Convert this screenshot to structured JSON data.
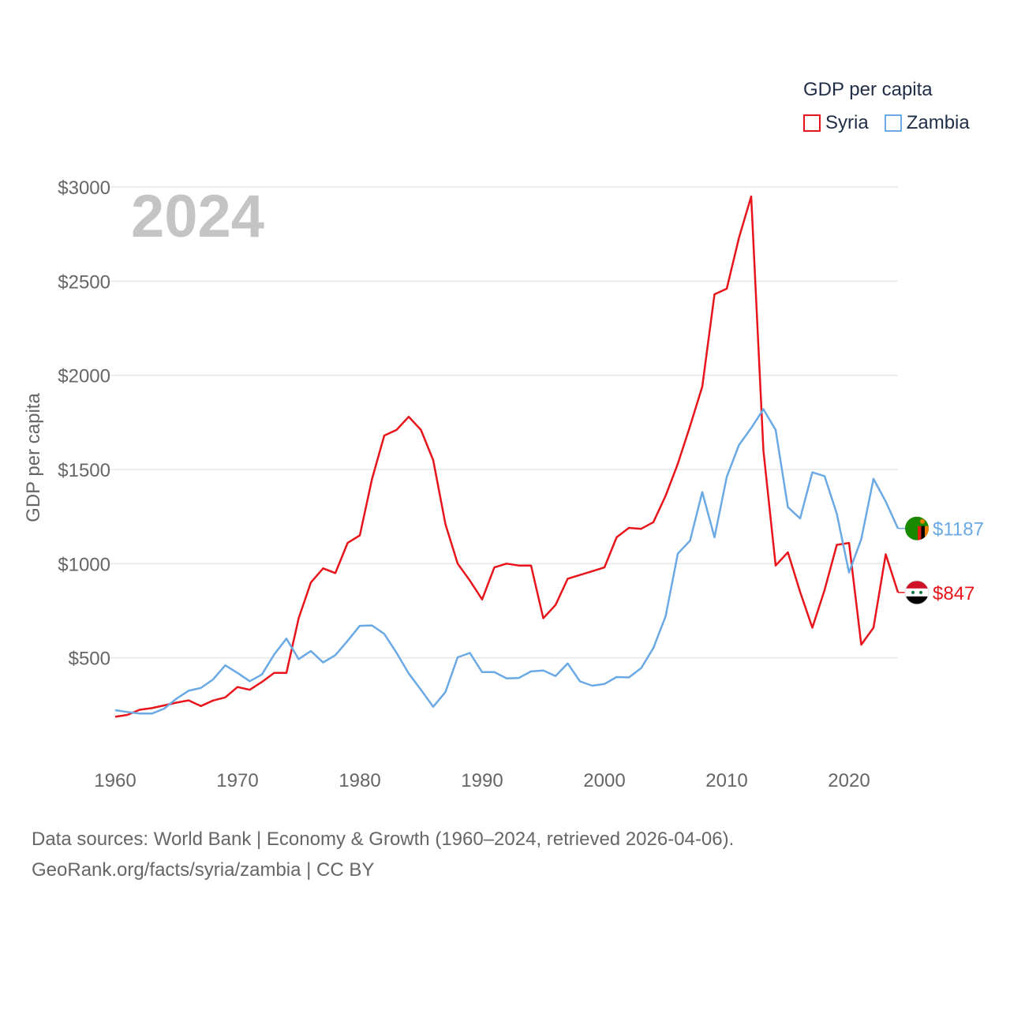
{
  "footer": {
    "sources": "Data sources: World Bank | Economy & Growth (1960–2024, retrieved 2026-04-06).",
    "link": "GeoRank.org/facts/syria/zambia | CC BY"
  },
  "colors": {
    "syria": "#e8141b",
    "zambia": "#6aa9e3",
    "grid": "#e6e6e6",
    "axis_text": "#666666",
    "year_label": "#c4c4c4",
    "title": "#1f2d46"
  },
  "chart_data": {
    "type": "line",
    "year_label": "2024",
    "ylabel": "GDP per capita",
    "legend_title": "GDP per capita",
    "legend_position": "top-right",
    "xlim": [
      1960,
      2024
    ],
    "ylim": [
      0,
      3000
    ],
    "yticks": [
      500,
      1000,
      1500,
      2000,
      2500,
      3000
    ],
    "ytick_labels": [
      "$500",
      "$1000",
      "$1500",
      "$2000",
      "$2500",
      "$3000"
    ],
    "xticks": [
      1960,
      1970,
      1980,
      1990,
      2000,
      2010,
      2020
    ],
    "xtick_labels": [
      "1960",
      "1970",
      "1980",
      "1990",
      "2000",
      "2010",
      "2020"
    ],
    "x": [
      1960,
      1961,
      1962,
      1963,
      1964,
      1965,
      1966,
      1967,
      1968,
      1969,
      1970,
      1971,
      1972,
      1973,
      1974,
      1975,
      1976,
      1977,
      1978,
      1979,
      1980,
      1981,
      1982,
      1983,
      1984,
      1985,
      1986,
      1987,
      1988,
      1989,
      1990,
      1991,
      1992,
      1993,
      1994,
      1995,
      1996,
      1997,
      1998,
      1999,
      2000,
      2001,
      2002,
      2003,
      2004,
      2005,
      2006,
      2007,
      2008,
      2009,
      2010,
      2011,
      2012,
      2013,
      2014,
      2015,
      2016,
      2017,
      2018,
      2019,
      2020,
      2021,
      2022,
      2023,
      2024
    ],
    "series": [
      {
        "name": "Syria",
        "end_label": "$847",
        "flag": "syria-flag",
        "values": [
          187,
          197,
          224,
          233,
          247,
          262,
          274,
          244,
          273,
          290,
          345,
          330,
          372,
          420,
          420,
          710,
          900,
          975,
          950,
          1110,
          1150,
          1450,
          1680,
          1710,
          1780,
          1710,
          1550,
          1210,
          1000,
          910,
          810,
          980,
          1000,
          990,
          990,
          710,
          780,
          920,
          940,
          960,
          980,
          1140,
          1190,
          1185,
          1220,
          1360,
          1530,
          1730,
          1940,
          2430,
          2460,
          2730,
          2950,
          1600,
          990,
          1060,
          850,
          660,
          860,
          1100,
          1110,
          570,
          660,
          1050,
          847
        ]
      },
      {
        "name": "Zambia",
        "end_label": "$1187",
        "flag": "zambia-flag",
        "values": [
          222,
          212,
          204,
          204,
          230,
          283,
          325,
          340,
          385,
          460,
          420,
          376,
          412,
          518,
          602,
          493,
          536,
          475,
          514,
          590,
          670,
          672,
          627,
          527,
          417,
          330,
          240,
          318,
          503,
          526,
          424,
          424,
          391,
          393,
          428,
          433,
          403,
          470,
          375,
          352,
          361,
          398,
          396,
          445,
          552,
          720,
          1053,
          1122,
          1380,
          1140,
          1460,
          1630,
          1720,
          1820,
          1710,
          1300,
          1240,
          1485,
          1465,
          1265,
          953,
          1130,
          1450,
          1330,
          1187
        ]
      }
    ]
  }
}
